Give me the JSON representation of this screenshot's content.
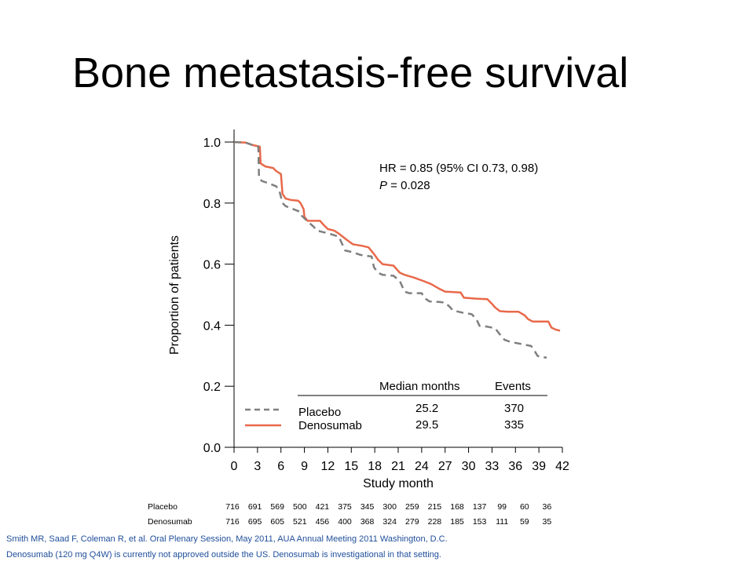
{
  "slide": {
    "title": "Bone metastasis-free survival",
    "footnotes": [
      "Smith MR, Saad F, Coleman R, et al. Oral Plenary Session, May 2011, AUA  Annual Meeting 2011 Washington, D.C.",
      "Denosumab (120 mg Q4W)  is currently not approved outside the US. Denosumab is investigational in that setting."
    ]
  },
  "colors": {
    "denosumab": "#e8694a",
    "placebo": "#7f7f7f",
    "footnote": "#1f4e9a"
  },
  "chart_data": {
    "type": "line",
    "xlabel": "Study month",
    "ylabel": "Proportion of patients",
    "xlim": [
      0,
      42
    ],
    "ylim": [
      0,
      1
    ],
    "x_ticks": [
      0,
      3,
      6,
      9,
      12,
      15,
      18,
      21,
      24,
      27,
      30,
      33,
      36,
      39,
      42
    ],
    "y_ticks": [
      "0.0",
      "0.2",
      "0.4",
      "0.6",
      "0.8",
      "1.0"
    ],
    "annotation": {
      "hr": "HR = 0.85 (95% CI 0.73, 0.98)",
      "p_label": "P",
      "p_value": " = 0.028"
    },
    "legend": {
      "header_median": "Median months",
      "header_events": "Events",
      "entries": [
        {
          "name": "Placebo",
          "median": "25.2",
          "events": "370",
          "style": "dashed"
        },
        {
          "name": "Denosumab",
          "median": "29.5",
          "events": "335",
          "style": "solid"
        }
      ]
    },
    "series": [
      {
        "name": "Denosumab",
        "style": "solid",
        "points": [
          [
            0,
            1.0
          ],
          [
            1.5,
            0.998
          ],
          [
            2.4,
            0.99
          ],
          [
            3.3,
            0.985
          ],
          [
            3.4,
            0.93
          ],
          [
            4.0,
            0.92
          ],
          [
            5.0,
            0.915
          ],
          [
            5.4,
            0.905
          ],
          [
            6.0,
            0.895
          ],
          [
            6.2,
            0.83
          ],
          [
            6.6,
            0.815
          ],
          [
            7.3,
            0.81
          ],
          [
            8.2,
            0.808
          ],
          [
            8.5,
            0.8
          ],
          [
            8.9,
            0.78
          ],
          [
            9.0,
            0.755
          ],
          [
            9.4,
            0.742
          ],
          [
            11,
            0.742
          ],
          [
            11.4,
            0.73
          ],
          [
            12.0,
            0.715
          ],
          [
            12.8,
            0.71
          ],
          [
            13.4,
            0.7
          ],
          [
            14.4,
            0.68
          ],
          [
            15.2,
            0.665
          ],
          [
            16.4,
            0.66
          ],
          [
            17.2,
            0.655
          ],
          [
            18.0,
            0.63
          ],
          [
            18.4,
            0.615
          ],
          [
            19.0,
            0.6
          ],
          [
            20.4,
            0.595
          ],
          [
            21.2,
            0.572
          ],
          [
            21.8,
            0.565
          ],
          [
            23.0,
            0.556
          ],
          [
            24.2,
            0.545
          ],
          [
            25.2,
            0.535
          ],
          [
            26.2,
            0.52
          ],
          [
            27.0,
            0.51
          ],
          [
            29.0,
            0.507
          ],
          [
            29.4,
            0.49
          ],
          [
            31.0,
            0.487
          ],
          [
            32.4,
            0.485
          ],
          [
            33.0,
            0.47
          ],
          [
            33.4,
            0.458
          ],
          [
            34.0,
            0.446
          ],
          [
            35.0,
            0.444
          ],
          [
            36.4,
            0.444
          ],
          [
            37.2,
            0.432
          ],
          [
            37.6,
            0.42
          ],
          [
            38.2,
            0.412
          ],
          [
            40.2,
            0.412
          ],
          [
            40.6,
            0.392
          ],
          [
            41.2,
            0.385
          ],
          [
            41.7,
            0.382
          ]
        ]
      },
      {
        "name": "Placebo",
        "style": "dashed",
        "points": [
          [
            0,
            1.0
          ],
          [
            1.5,
            0.998
          ],
          [
            2.4,
            0.99
          ],
          [
            3.1,
            0.985
          ],
          [
            3.2,
            0.88
          ],
          [
            3.6,
            0.872
          ],
          [
            4.4,
            0.865
          ],
          [
            5.4,
            0.855
          ],
          [
            5.8,
            0.84
          ],
          [
            6.2,
            0.8
          ],
          [
            6.6,
            0.79
          ],
          [
            7.6,
            0.78
          ],
          [
            8.4,
            0.772
          ],
          [
            8.6,
            0.76
          ],
          [
            9.4,
            0.74
          ],
          [
            10.2,
            0.722
          ],
          [
            10.6,
            0.71
          ],
          [
            11.4,
            0.705
          ],
          [
            12.2,
            0.7
          ],
          [
            13.4,
            0.69
          ],
          [
            14.2,
            0.645
          ],
          [
            15.0,
            0.64
          ],
          [
            16.2,
            0.63
          ],
          [
            17.6,
            0.625
          ],
          [
            17.9,
            0.59
          ],
          [
            18.4,
            0.572
          ],
          [
            19.0,
            0.565
          ],
          [
            20.4,
            0.562
          ],
          [
            21.2,
            0.545
          ],
          [
            21.8,
            0.51
          ],
          [
            22.4,
            0.505
          ],
          [
            24.0,
            0.505
          ],
          [
            24.3,
            0.49
          ],
          [
            25.0,
            0.478
          ],
          [
            26.2,
            0.476
          ],
          [
            27.0,
            0.474
          ],
          [
            27.6,
            0.46
          ],
          [
            28.0,
            0.448
          ],
          [
            29.4,
            0.44
          ],
          [
            30.4,
            0.436
          ],
          [
            31.0,
            0.42
          ],
          [
            31.4,
            0.398
          ],
          [
            32.4,
            0.395
          ],
          [
            33.4,
            0.39
          ],
          [
            34.0,
            0.37
          ],
          [
            34.6,
            0.352
          ],
          [
            35.4,
            0.345
          ],
          [
            36.4,
            0.34
          ],
          [
            37.2,
            0.336
          ],
          [
            38.0,
            0.332
          ],
          [
            38.4,
            0.318
          ],
          [
            38.8,
            0.3
          ],
          [
            39.2,
            0.295
          ],
          [
            40.0,
            0.294
          ]
        ]
      }
    ],
    "risk_table": {
      "rows": [
        {
          "label": "Placebo",
          "values": [
            "716",
            "691",
            "569",
            "500",
            "421",
            "375",
            "345",
            "300",
            "259",
            "215",
            "168",
            "137",
            "99",
            "60",
            "36"
          ]
        },
        {
          "label": "Denosumab",
          "values": [
            "716",
            "695",
            "605",
            "521",
            "456",
            "400",
            "368",
            "324",
            "279",
            "228",
            "185",
            "153",
            "111",
            "59",
            "35"
          ]
        }
      ]
    }
  }
}
